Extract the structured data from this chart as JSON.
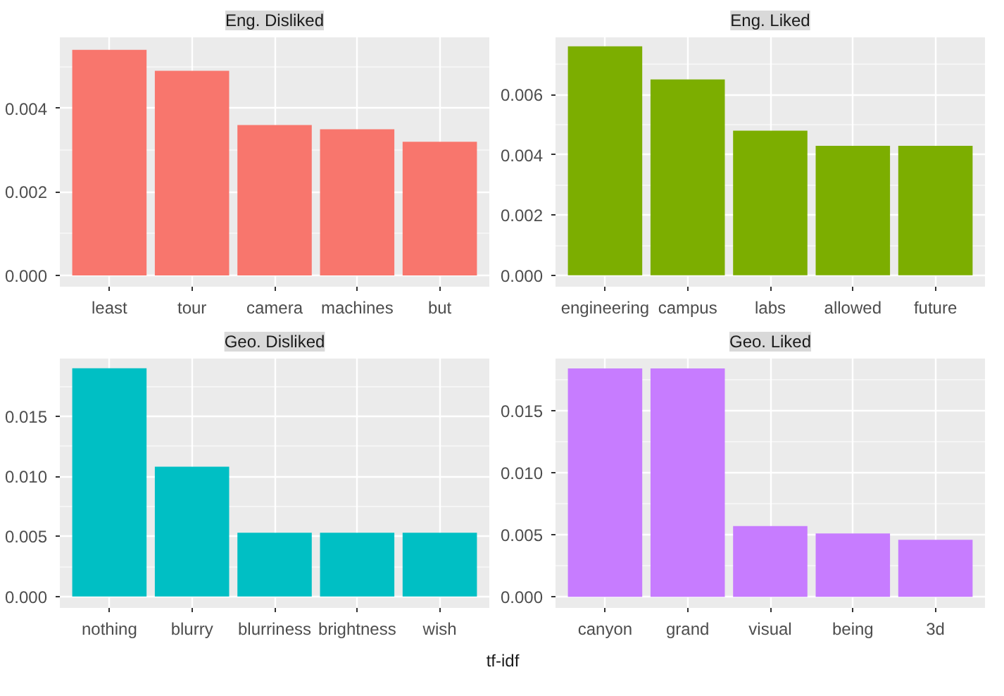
{
  "chart_data": [
    {
      "type": "bar",
      "title": "Eng. Disliked",
      "categories": [
        "least",
        "tour",
        "camera",
        "machines",
        "but"
      ],
      "values": [
        0.0054,
        0.0049,
        0.0036,
        0.0035,
        0.0032
      ],
      "color": "#f8766d",
      "ylim": [
        -0.00027,
        0.0057
      ],
      "yticks": [
        {
          "value": 0,
          "label": "0.000"
        },
        {
          "value": 0.002,
          "label": "0.002"
        },
        {
          "value": 0.004,
          "label": "0.004"
        }
      ],
      "grid": true
    },
    {
      "type": "bar",
      "title": "Eng. Liked",
      "categories": [
        "engineering",
        "campus",
        "labs",
        "allowed",
        "future"
      ],
      "values": [
        0.0076,
        0.0065,
        0.0048,
        0.0043,
        0.0043
      ],
      "color": "#7cae00",
      "ylim": [
        -0.00038,
        0.0079
      ],
      "yticks": [
        {
          "value": 0,
          "label": "0.000"
        },
        {
          "value": 0.002,
          "label": "0.002"
        },
        {
          "value": 0.004,
          "label": "0.004"
        },
        {
          "value": 0.006,
          "label": "0.006"
        }
      ],
      "grid": true
    },
    {
      "type": "bar",
      "title": "Geo. Disliked",
      "categories": [
        "nothing",
        "blurry",
        "blurriness",
        "brightness",
        "wish"
      ],
      "values": [
        0.019,
        0.0108,
        0.0053,
        0.0053,
        0.0053
      ],
      "color": "#00bfc4",
      "ylim": [
        -0.00095,
        0.0198
      ],
      "yticks": [
        {
          "value": 0,
          "label": "0.000"
        },
        {
          "value": 0.005,
          "label": "0.005"
        },
        {
          "value": 0.01,
          "label": "0.010"
        },
        {
          "value": 0.015,
          "label": "0.015"
        }
      ],
      "grid": true
    },
    {
      "type": "bar",
      "title": "Geo. Liked",
      "categories": [
        "canyon",
        "grand",
        "visual",
        "being",
        "3d"
      ],
      "values": [
        0.0184,
        0.0184,
        0.0057,
        0.0051,
        0.0046
      ],
      "color": "#c77cff",
      "ylim": [
        -0.0009,
        0.0192
      ],
      "yticks": [
        {
          "value": 0,
          "label": "0.000"
        },
        {
          "value": 0.005,
          "label": "0.005"
        },
        {
          "value": 0.01,
          "label": "0.010"
        },
        {
          "value": 0.015,
          "label": "0.015"
        }
      ],
      "grid": true,
      "annotations": [
        "tf-idf"
      ]
    }
  ]
}
